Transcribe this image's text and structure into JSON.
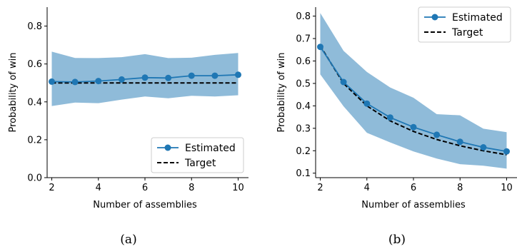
{
  "chart_data": [
    {
      "id": "a",
      "type": "line",
      "caption": "(a)",
      "xlabel": "Number of assemblies",
      "ylabel": "Probability of win",
      "xlim": [
        1.8,
        10.2
      ],
      "ylim": [
        0.0,
        0.9
      ],
      "xticks": [
        2,
        4,
        6,
        8,
        10
      ],
      "yticks": [
        0.0,
        0.2,
        0.4,
        0.6,
        0.8
      ],
      "ytick_labels": [
        "0.0",
        "0.2",
        "0.4",
        "0.6",
        "0.8"
      ],
      "grid": false,
      "legend_position": "lower-right",
      "x": [
        2,
        3,
        4,
        5,
        6,
        7,
        8,
        9,
        10
      ],
      "series": [
        {
          "name": "Estimated",
          "style": "solid-marker",
          "color": "#1f77b4",
          "values": [
            0.507,
            0.505,
            0.51,
            0.518,
            0.528,
            0.526,
            0.538,
            0.538,
            0.543
          ],
          "band_lower": [
            0.378,
            0.396,
            0.393,
            0.412,
            0.428,
            0.419,
            0.432,
            0.428,
            0.435
          ],
          "band_upper": [
            0.665,
            0.632,
            0.631,
            0.636,
            0.652,
            0.631,
            0.633,
            0.648,
            0.658
          ]
        },
        {
          "name": "Target",
          "style": "dashed",
          "color": "#000000",
          "values": [
            0.5,
            0.5,
            0.5,
            0.5,
            0.5,
            0.5,
            0.5,
            0.5,
            0.5
          ]
        }
      ]
    },
    {
      "id": "b",
      "type": "line",
      "caption": "(b)",
      "xlabel": "Number of assemblies",
      "ylabel": "Probability of win",
      "xlim": [
        1.8,
        10.2
      ],
      "ylim": [
        0.08,
        0.84
      ],
      "xticks": [
        2,
        4,
        6,
        8,
        10
      ],
      "yticks": [
        0.1,
        0.2,
        0.3,
        0.4,
        0.5,
        0.6,
        0.7,
        0.8
      ],
      "ytick_labels": [
        "0.1",
        "0.2",
        "0.3",
        "0.4",
        "0.5",
        "0.6",
        "0.7",
        "0.8"
      ],
      "grid": false,
      "legend_position": "upper-right",
      "x": [
        2,
        3,
        4,
        5,
        6,
        7,
        8,
        9,
        10
      ],
      "series": [
        {
          "name": "Estimated",
          "style": "solid-marker",
          "color": "#1f77b4",
          "values": [
            0.663,
            0.506,
            0.41,
            0.348,
            0.305,
            0.271,
            0.24,
            0.215,
            0.197
          ],
          "band_lower": [
            0.54,
            0.398,
            0.28,
            0.237,
            0.197,
            0.165,
            0.14,
            0.133,
            0.12
          ],
          "band_upper": [
            0.814,
            0.645,
            0.551,
            0.482,
            0.436,
            0.363,
            0.358,
            0.298,
            0.283
          ]
        },
        {
          "name": "Target",
          "style": "dashed",
          "color": "#000000",
          "values": [
            0.667,
            0.5,
            0.4,
            0.333,
            0.286,
            0.25,
            0.222,
            0.2,
            0.182
          ]
        }
      ]
    }
  ]
}
